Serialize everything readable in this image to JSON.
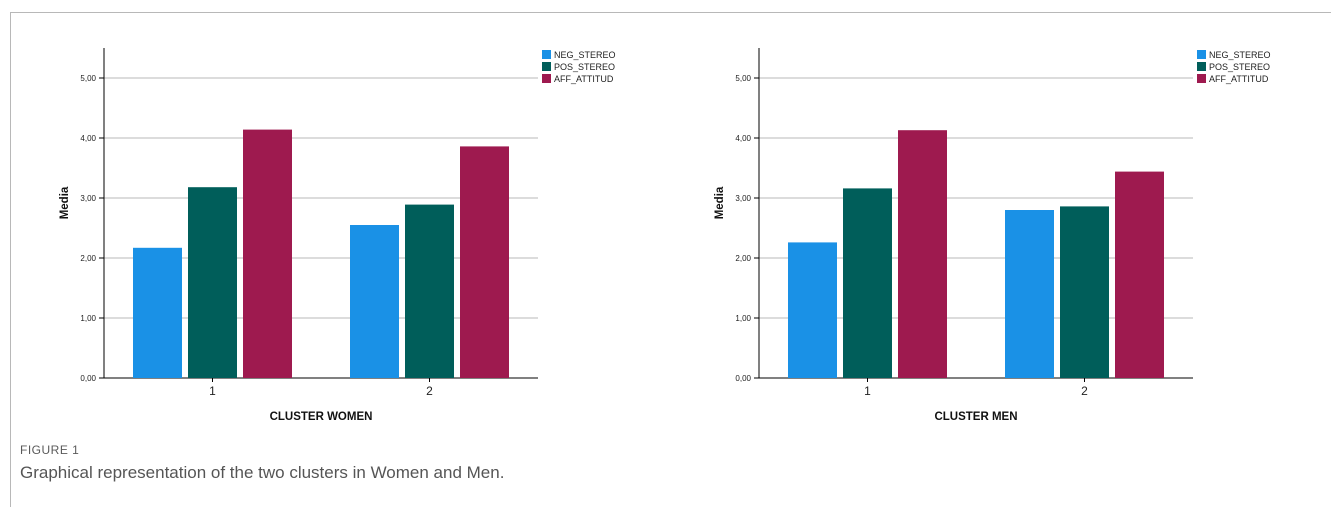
{
  "figure": {
    "label": "FIGURE 1",
    "caption": "Graphical representation of the two clusters in Women and Men."
  },
  "colors": {
    "NEG_STEREO": "#1a91e6",
    "POS_STEREO": "#005e5a",
    "AFF_ATTITUD": "#9e1a4f",
    "grid": "#b8b8b8",
    "axis": "#000000"
  },
  "chart_data": [
    {
      "type": "bar",
      "title": "",
      "xlabel": "CLUSTER WOMEN",
      "ylabel": "Media",
      "categories": [
        "1",
        "2"
      ],
      "ylim": [
        0,
        5.5
      ],
      "yticks": [
        0,
        1,
        2,
        3,
        4,
        5
      ],
      "ytick_labels": [
        "0,00",
        "1,00",
        "2,00",
        "3,00",
        "4,00",
        "5,00"
      ],
      "grid": true,
      "legend_position": "top-right",
      "series": [
        {
          "name": "NEG_STEREO",
          "values": [
            2.17,
            2.55
          ]
        },
        {
          "name": "POS_STEREO",
          "values": [
            3.18,
            2.89
          ]
        },
        {
          "name": "AFF_ATTITUD",
          "values": [
            4.14,
            3.86
          ]
        }
      ]
    },
    {
      "type": "bar",
      "title": "",
      "xlabel": "CLUSTER MEN",
      "ylabel": "Media",
      "categories": [
        "1",
        "2"
      ],
      "ylim": [
        0,
        5.5
      ],
      "yticks": [
        0,
        1,
        2,
        3,
        4,
        5
      ],
      "ytick_labels": [
        "0,00",
        "1,00",
        "2,00",
        "3,00",
        "4,00",
        "5,00"
      ],
      "grid": true,
      "legend_position": "top-right",
      "series": [
        {
          "name": "NEG_STEREO",
          "values": [
            2.26,
            2.8
          ]
        },
        {
          "name": "POS_STEREO",
          "values": [
            3.16,
            2.86
          ]
        },
        {
          "name": "AFF_ATTITUD",
          "values": [
            4.13,
            3.44
          ]
        }
      ]
    }
  ]
}
